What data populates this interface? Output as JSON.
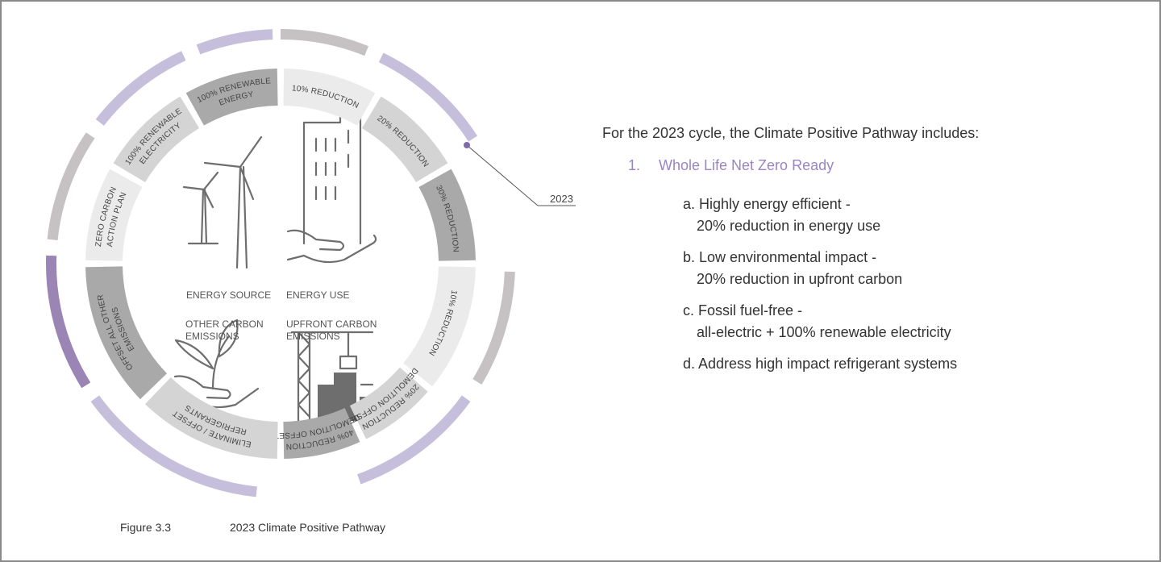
{
  "diagram": {
    "inner_segments": [
      {
        "lines": [
          "10% REDUCTION"
        ]
      },
      {
        "lines": [
          "20% REDUCTION"
        ]
      },
      {
        "lines": [
          "30% REDUCTION"
        ]
      },
      {
        "lines": [
          "10% REDUCTION"
        ]
      },
      {
        "lines": [
          "20% REDUCTION",
          "DEMOLITION OFFSET"
        ]
      },
      {
        "lines": [
          "40% REDUCTION",
          "DEMOLITION OFFSET"
        ]
      },
      {
        "lines": [
          "ELIMINATE / OFFSET",
          "REFRIGERANTS"
        ]
      },
      {
        "lines": [
          "OFFSET ALL OTHER",
          "EMISSIONS"
        ]
      },
      {
        "lines": [
          "ZERO CARBON",
          "ACTION PLAN"
        ]
      },
      {
        "lines": [
          "100% RENEWABLE",
          "ELECTRICITY"
        ]
      },
      {
        "lines": [
          "100% RENEWABLE",
          "ENERGY"
        ]
      }
    ],
    "quadrant_labels": [
      {
        "lines": [
          "ENERGY SOURCE"
        ]
      },
      {
        "lines": [
          "ENERGY USE"
        ]
      },
      {
        "lines": [
          "OTHER CARBON",
          "EMISSIONS"
        ]
      },
      {
        "lines": [
          "UPFRONT CARBON",
          "EMISSIONS"
        ]
      }
    ],
    "annotation": "2023"
  },
  "text": {
    "intro": "For the 2023 cycle, the Climate Positive Pathway includes:",
    "items": [
      {
        "number": "1.",
        "title": "Whole Life Net Zero Ready",
        "subitems": [
          {
            "lines": [
              "a. Highly energy efficient -",
              "20% reduction in energy use"
            ]
          },
          {
            "lines": [
              "b. Low environmental impact -",
              "20% reduction in upfront carbon"
            ]
          },
          {
            "lines": [
              "c. Fossil fuel-free -",
              "all-electric + 100% renewable electricity"
            ]
          },
          {
            "lines": [
              "d. Address high impact refrigerant systems"
            ]
          }
        ]
      }
    ]
  },
  "caption": {
    "number": "Figure 3.3",
    "title": "2023 Climate Positive Pathway"
  }
}
